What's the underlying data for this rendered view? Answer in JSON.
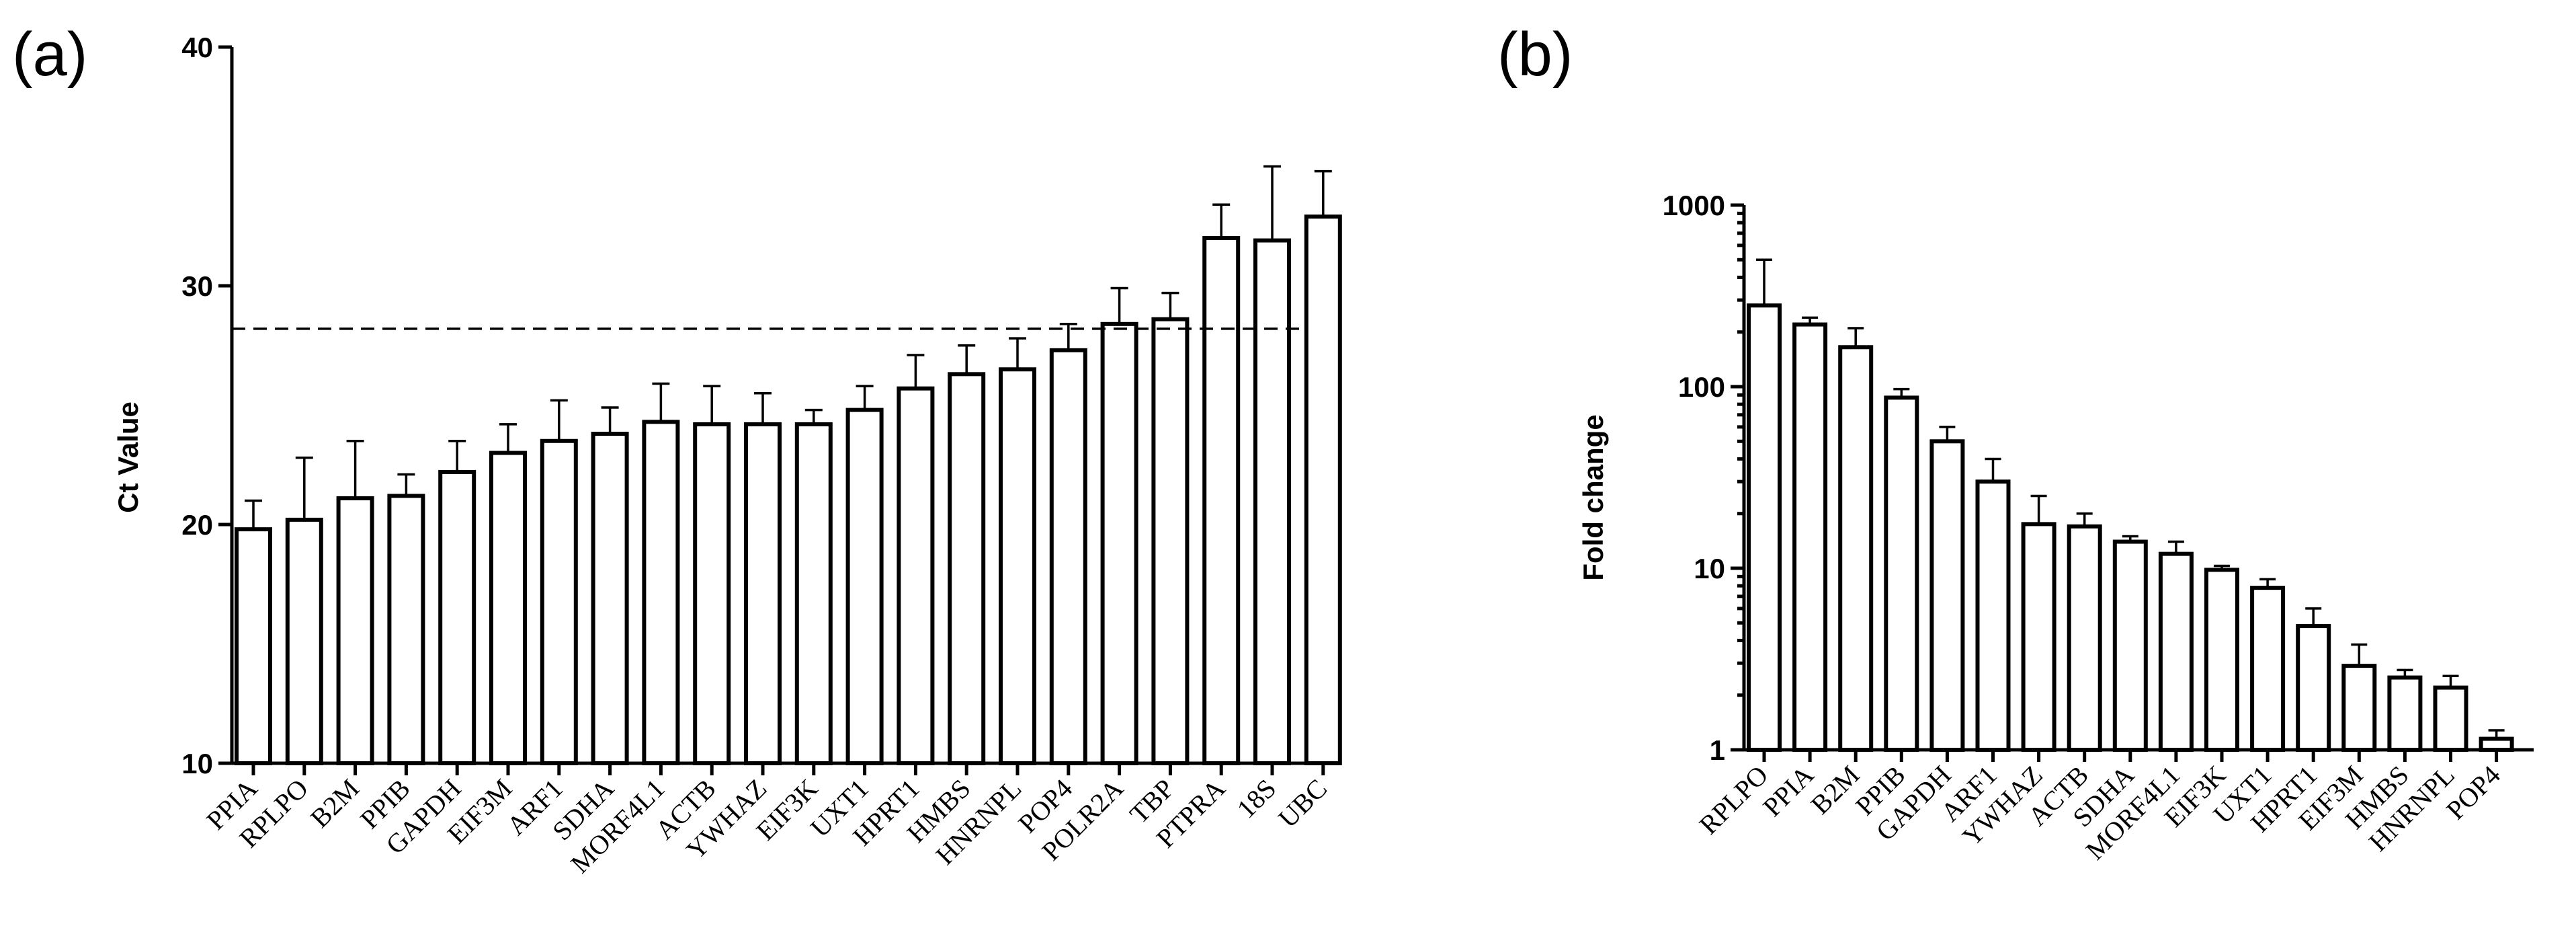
{
  "chart_data": [
    {
      "panel_label": "(a)",
      "type": "bar",
      "ylabel": "Ct Value",
      "ylim": [
        10,
        40
      ],
      "yticks": [
        "10",
        "20",
        "30",
        "40"
      ],
      "yscale": "linear",
      "reference_line": 28.2,
      "categories": [
        "PPIA",
        "RPLPO",
        "B2M",
        "PPIB",
        "GAPDH",
        "EIF3M",
        "ARF1",
        "SDHA",
        "MORF4L1",
        "ACTB",
        "YWHAZ",
        "EIF3K",
        "UXT1",
        "HPRT1",
        "HMBS",
        "HNRNPL",
        "POP4",
        "POLR2A",
        "TBP",
        "PTPRA",
        "18S",
        "UBC"
      ],
      "values": [
        19.8,
        20.2,
        21.1,
        21.2,
        22.2,
        23.0,
        23.5,
        23.8,
        24.3,
        24.2,
        24.2,
        24.2,
        24.8,
        25.7,
        26.3,
        26.5,
        27.3,
        28.4,
        28.6,
        32.0,
        31.9,
        32.9
      ],
      "error_upper": [
        21.0,
        22.8,
        23.5,
        22.1,
        23.5,
        24.2,
        25.2,
        24.9,
        25.9,
        25.8,
        25.5,
        24.8,
        25.8,
        27.1,
        27.5,
        27.8,
        28.4,
        29.9,
        29.7,
        33.4,
        35.0,
        34.8
      ]
    },
    {
      "panel_label": "(b)",
      "type": "bar",
      "ylabel": "Fold change",
      "ylim": [
        1,
        1000
      ],
      "yticks": [
        "1",
        "10",
        "100",
        "1000"
      ],
      "yscale": "log",
      "categories": [
        "RPLPO",
        "PPIA",
        "B2M",
        "PPIB",
        "GAPDH",
        "ARF1",
        "YWHAZ",
        "ACTB",
        "SDHA",
        "MORF4L1",
        "EIF3K",
        "UXT1",
        "HPRT1",
        "EIF3M",
        "HMBS",
        "HNRNPL",
        "POP4"
      ],
      "values": [
        280,
        220,
        165,
        87,
        50,
        30,
        17.5,
        17,
        14,
        12,
        9.8,
        7.8,
        4.8,
        2.9,
        2.5,
        2.2,
        1.15
      ],
      "error_upper": [
        500,
        240,
        210,
        97,
        60,
        40,
        25,
        20,
        15,
        14,
        10.3,
        8.7,
        6.0,
        3.8,
        2.75,
        2.55,
        1.28
      ]
    }
  ]
}
